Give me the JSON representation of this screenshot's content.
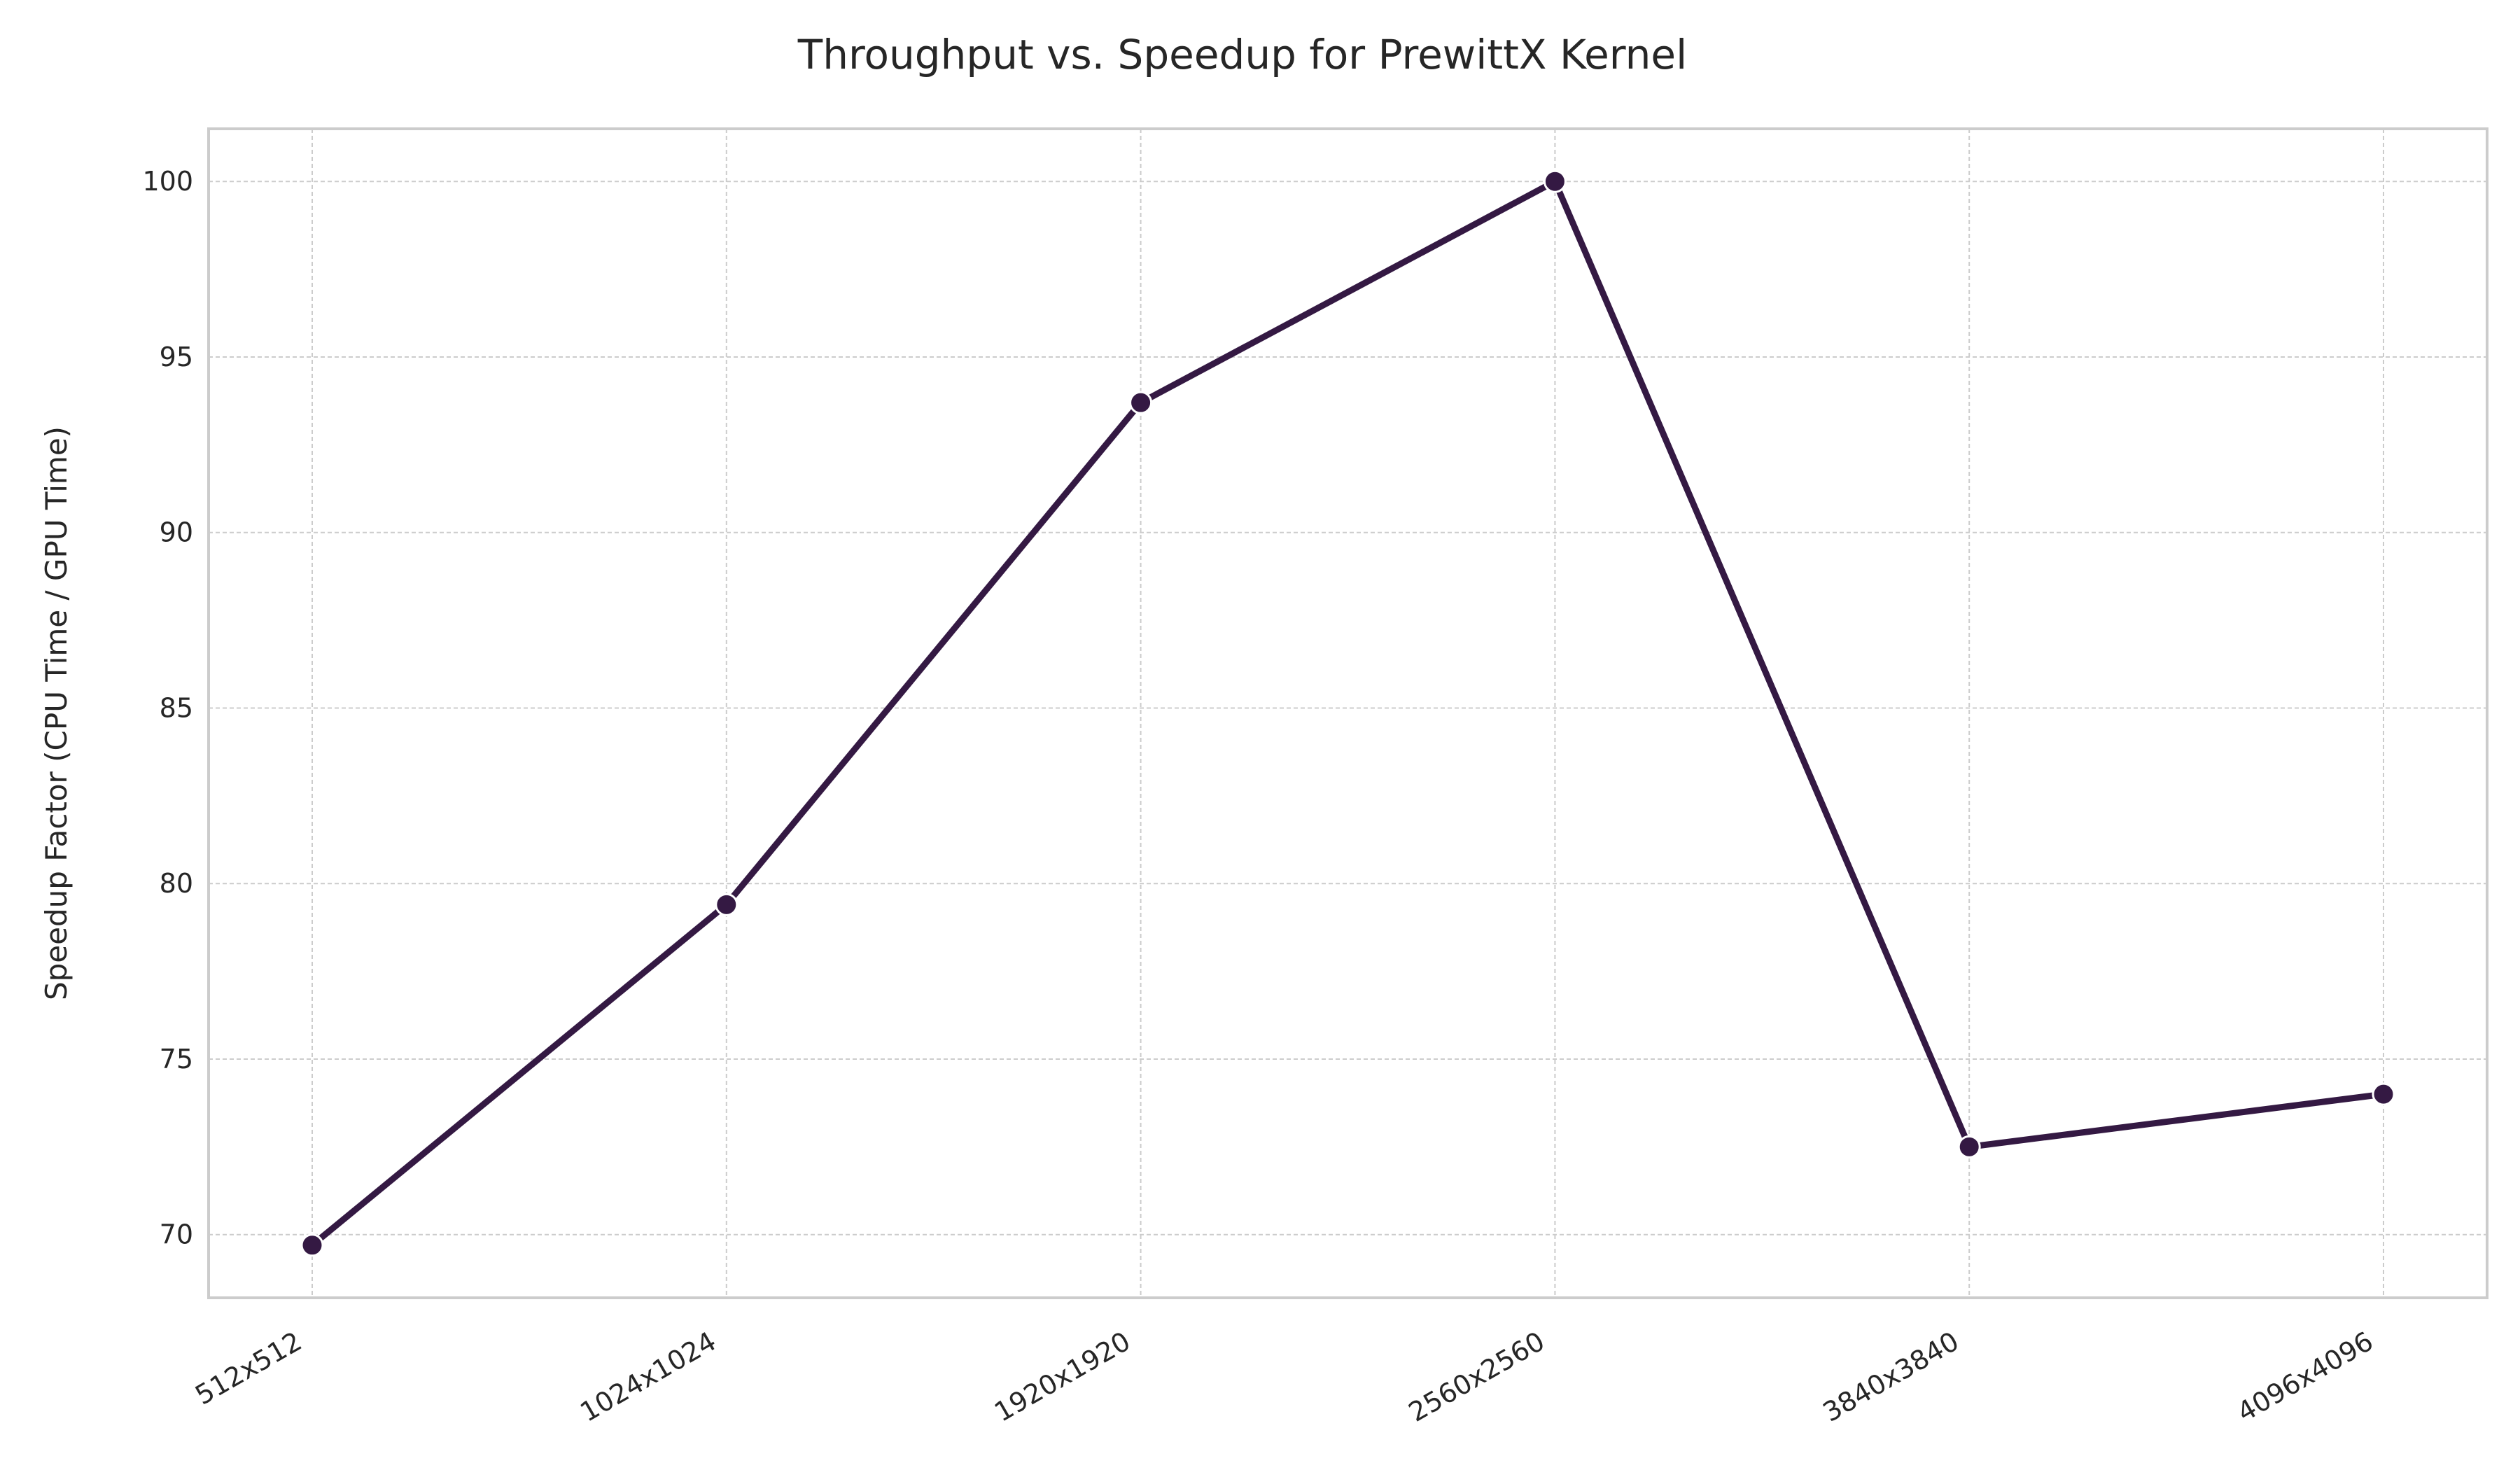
{
  "chart_data": {
    "type": "line",
    "title": "Throughput vs. Speedup for PrewittX Kernel",
    "xlabel": "",
    "ylabel": "Speedup Factor (CPU Time / GPU Time)",
    "categories": [
      "512x512",
      "1024x1024",
      "1920x1920",
      "2560x2560",
      "3840x3840",
      "4096x4096"
    ],
    "series": [
      {
        "values": [
          69.7,
          79.4,
          93.7,
          100.0,
          72.5,
          74.0
        ]
      }
    ],
    "ylim": [
      68.2,
      101.5
    ],
    "yticks": [
      70,
      75,
      80,
      85,
      90,
      95,
      100
    ],
    "grid": true,
    "legend": "none",
    "colors": {
      "line": "#341943",
      "marker_edge": "#ffffff",
      "grid": "#cccccc",
      "frame": "#cccccc"
    }
  }
}
